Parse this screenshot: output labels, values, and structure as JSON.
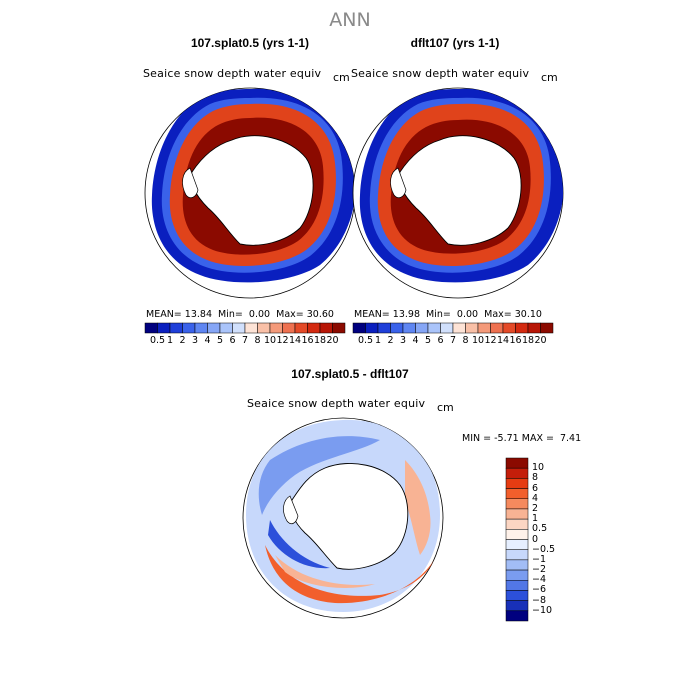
{
  "figure": {
    "title": "ANN",
    "colors": {
      "ocean": "#ffffff",
      "land": "#ffffff",
      "outline": "#000000",
      "ice_deep": "#8b0a00",
      "ice_mid": "#e0431b",
      "ice_edge": "#0a1fbf"
    }
  },
  "panels": {
    "left": {
      "title": "107.splat0.5 (yrs 1-1)",
      "variable": "Seaice snow depth water equiv",
      "unit": "cm",
      "mean_label": "MEAN=",
      "mean": "13.84",
      "min_label": "Min=",
      "min": "0.00",
      "max_label": "Max=",
      "max": "30.60"
    },
    "right": {
      "title": "dflt107 (yrs 1-1)",
      "variable": "Seaice snow depth water equiv",
      "unit": "cm",
      "mean_label": "MEAN=",
      "mean": "13.98",
      "min_label": "Min=",
      "min": "0.00",
      "max_label": "Max=",
      "max": "30.10"
    },
    "diff": {
      "title": "107.splat0.5 - dflt107",
      "variable": "Seaice snow depth water equiv",
      "unit": "cm",
      "min_label": "MIN =",
      "min": "-5.71",
      "max_label": "MAX =",
      "max": "7.41"
    }
  },
  "colorbar_top": {
    "ticks": [
      "0.5",
      "1",
      "2",
      "3",
      "4",
      "5",
      "6",
      "7",
      "8",
      "10",
      "12",
      "14",
      "16",
      "18",
      "20"
    ],
    "colors": [
      "#00007f",
      "#0a1fbf",
      "#1f3fd9",
      "#3a62ea",
      "#5f86f2",
      "#86a6f6",
      "#aac4fa",
      "#d1e0fc",
      "#fde3d6",
      "#f9c0a7",
      "#f49a7a",
      "#ee7150",
      "#e44a28",
      "#d42a10",
      "#b81606",
      "#8b0a00"
    ]
  },
  "colorbar_diff": {
    "ticks": [
      "10",
      "8",
      "6",
      "4",
      "2",
      "1",
      "0.5",
      "0",
      "−0.5",
      "−1",
      "−2",
      "−4",
      "−6",
      "−8",
      "−10"
    ],
    "colors": [
      "#8b0a00",
      "#c41e0a",
      "#e63c12",
      "#f25f2c",
      "#f58a5e",
      "#f8b394",
      "#fcd6c3",
      "#fff2ea",
      "#e6efff",
      "#c7d8fb",
      "#a2bdf6",
      "#7a9cf0",
      "#5277e6",
      "#2c50da",
      "#1830b8",
      "#00007f"
    ]
  }
}
